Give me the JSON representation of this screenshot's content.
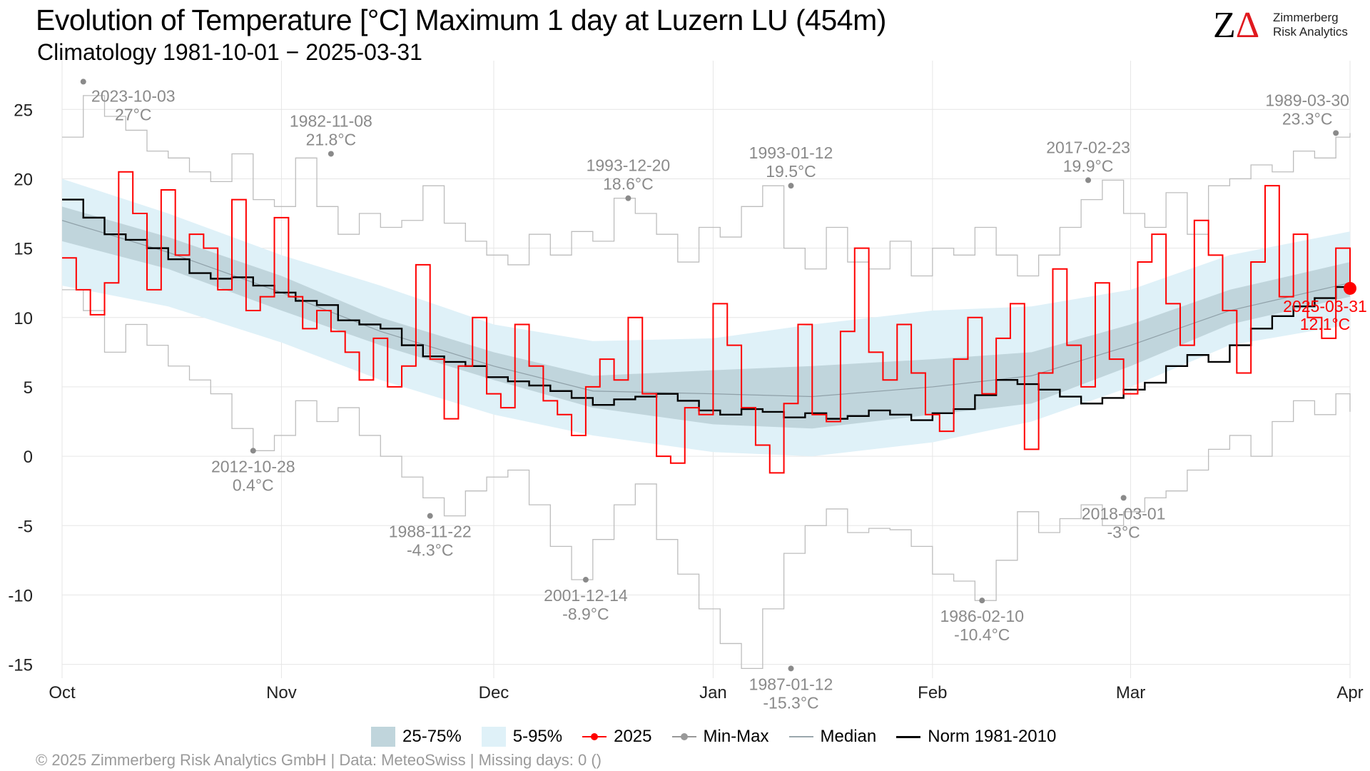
{
  "header": {
    "title": "Evolution of Temperature [°C] Maximum 1 day at Luzern  LU (454m)",
    "subtitle": "Climatology 1981-10-01 − 2025-03-31"
  },
  "logo": {
    "line1": "Zimmerberg",
    "line2": "Risk Analytics"
  },
  "footer": {
    "text": "©  2025 Zimmerberg Risk Analytics GmbH | Data: MeteoSwiss | Missing days: 0 ()"
  },
  "legend": [
    {
      "label": "25-75%",
      "kind": "band",
      "color": "#c0d5dc"
    },
    {
      "label": "5-95%",
      "kind": "band",
      "color": "#dff1f8"
    },
    {
      "label": "2025",
      "kind": "line-dot",
      "color": "#ff0000"
    },
    {
      "label": "Min-Max",
      "kind": "line-dot",
      "color": "#999999"
    },
    {
      "label": "Median",
      "kind": "line",
      "color": "#9aa7ad"
    },
    {
      "label": "Norm 1981-2010",
      "kind": "line",
      "color": "#000000"
    }
  ],
  "chart_data": {
    "type": "line",
    "x_axis": {
      "ticks": [
        "Oct",
        "Nov",
        "Dec",
        "Jan",
        "Feb",
        "Mar",
        "Apr"
      ],
      "start": "2024-10-01",
      "end": "2025-03-31"
    },
    "ylim": [
      -16,
      28
    ],
    "y_ticks": [
      25,
      20,
      15,
      10,
      5,
      0,
      -5,
      -10,
      -15
    ],
    "grid": true,
    "legend_position": "bottom",
    "colors": {
      "p25_75": "#c0d5dc",
      "p5_95": "#dff1f8",
      "current": "#ff0000",
      "minmax": "#bdbdbd",
      "median": "#8fa0a8",
      "norm": "#000000",
      "annot": "#8a8a8a"
    },
    "series": [
      {
        "name": "5-95%",
        "kind": "band",
        "x": [
          0,
          15,
          31,
          45,
          61,
          75,
          92,
          106,
          123,
          137,
          151,
          165,
          182
        ],
        "low": [
          12.3,
          10.8,
          8.2,
          5.5,
          3.0,
          1.5,
          0.3,
          0.0,
          1.0,
          2.5,
          5.0,
          8.0,
          9.5
        ],
        "high": [
          20.0,
          17.5,
          14.5,
          12.3,
          9.5,
          8.3,
          8.5,
          9.5,
          10.5,
          10.8,
          12.0,
          14.5,
          16.2
        ]
      },
      {
        "name": "25-75%",
        "kind": "band",
        "x": [
          0,
          15,
          31,
          45,
          61,
          75,
          92,
          106,
          123,
          137,
          151,
          165,
          182
        ],
        "low": [
          15.5,
          13.5,
          10.5,
          8.0,
          5.5,
          3.5,
          2.3,
          2.0,
          3.0,
          3.8,
          6.5,
          9.5,
          11.5
        ],
        "high": [
          18.0,
          15.8,
          13.0,
          10.0,
          7.5,
          5.8,
          6.2,
          6.5,
          7.0,
          7.5,
          9.5,
          12.0,
          14.0
        ]
      },
      {
        "name": "Median",
        "kind": "line",
        "x": [
          0,
          15,
          31,
          45,
          61,
          75,
          92,
          106,
          123,
          137,
          151,
          165,
          182
        ],
        "y": [
          17.0,
          14.7,
          11.8,
          9.0,
          6.5,
          4.7,
          4.5,
          4.3,
          5.0,
          5.8,
          8.0,
          10.5,
          12.5
        ]
      },
      {
        "name": "Norm 1981-2010",
        "kind": "step",
        "x": [
          0,
          3,
          6,
          9,
          12,
          15,
          18,
          21,
          24,
          27,
          30,
          33,
          36,
          39,
          42,
          45,
          48,
          51,
          54,
          57,
          60,
          63,
          66,
          69,
          72,
          75,
          78,
          81,
          84,
          87,
          90,
          93,
          96,
          99,
          102,
          105,
          108,
          111,
          114,
          117,
          120,
          123,
          126,
          129,
          132,
          135,
          138,
          141,
          144,
          147,
          150,
          153,
          156,
          159,
          162,
          165,
          168,
          171,
          174,
          177,
          180,
          182
        ],
        "y": [
          18.5,
          17.2,
          16.0,
          15.6,
          15.0,
          14.2,
          13.2,
          12.8,
          12.9,
          12.3,
          11.8,
          11.2,
          10.9,
          9.8,
          9.5,
          9.2,
          8.0,
          7.2,
          6.8,
          6.5,
          5.7,
          5.4,
          5.1,
          4.7,
          4.2,
          3.7,
          4.1,
          4.3,
          4.5,
          4.0,
          3.3,
          3.0,
          3.4,
          3.2,
          2.8,
          3.1,
          2.7,
          2.9,
          3.3,
          3.0,
          2.6,
          3.1,
          3.4,
          4.4,
          5.5,
          5.2,
          4.8,
          4.3,
          3.8,
          4.2,
          4.8,
          5.3,
          6.5,
          7.3,
          6.8,
          8.0,
          9.2,
          10.1,
          10.8,
          11.4,
          12.2,
          11.7
        ]
      },
      {
        "name": "Min-Max",
        "kind": "step",
        "role": "max",
        "x": [
          0,
          3,
          6,
          9,
          12,
          15,
          18,
          21,
          24,
          27,
          30,
          33,
          36,
          39,
          42,
          45,
          48,
          51,
          54,
          57,
          60,
          63,
          66,
          69,
          72,
          75,
          78,
          81,
          84,
          87,
          90,
          93,
          96,
          99,
          102,
          105,
          108,
          111,
          114,
          117,
          120,
          123,
          126,
          129,
          132,
          135,
          138,
          141,
          144,
          147,
          150,
          153,
          156,
          159,
          162,
          165,
          168,
          171,
          174,
          177,
          180,
          182
        ],
        "y": [
          23.0,
          26.0,
          24.5,
          23.5,
          22.0,
          21.5,
          20.5,
          19.8,
          21.8,
          18.5,
          18.0,
          21.5,
          18.0,
          16.0,
          17.5,
          16.5,
          17.0,
          19.5,
          16.8,
          15.5,
          14.5,
          13.8,
          16.0,
          14.5,
          16.2,
          15.5,
          18.6,
          17.5,
          16.0,
          14.0,
          16.5,
          15.8,
          18.0,
          19.5,
          15.0,
          13.5,
          16.5,
          14.0,
          13.5,
          15.5,
          13.0,
          15.0,
          14.5,
          16.5,
          14.5,
          13.0,
          14.5,
          16.5,
          18.5,
          19.9,
          17.5,
          16.5,
          19.0,
          16.0,
          19.5,
          20.0,
          21.0,
          20.5,
          22.0,
          21.5,
          23.0,
          23.3
        ]
      },
      {
        "name": "Min-Max",
        "kind": "step",
        "role": "min",
        "x": [
          0,
          3,
          6,
          9,
          12,
          15,
          18,
          21,
          24,
          27,
          30,
          33,
          36,
          39,
          42,
          45,
          48,
          51,
          54,
          57,
          60,
          63,
          66,
          69,
          72,
          75,
          78,
          81,
          84,
          87,
          90,
          93,
          96,
          99,
          102,
          105,
          108,
          111,
          114,
          117,
          120,
          123,
          126,
          129,
          132,
          135,
          138,
          141,
          144,
          147,
          150,
          153,
          156,
          159,
          162,
          165,
          168,
          171,
          174,
          177,
          180,
          182
        ],
        "y": [
          12.0,
          10.5,
          7.5,
          9.5,
          8.0,
          6.5,
          5.5,
          4.5,
          2.0,
          0.4,
          1.5,
          4.0,
          2.5,
          3.5,
          1.5,
          0.0,
          -1.5,
          -3.0,
          -4.3,
          -2.5,
          -1.5,
          -1.0,
          -3.5,
          -6.5,
          -8.9,
          -6.0,
          -3.5,
          -2.0,
          -6.0,
          -8.5,
          -11.0,
          -13.5,
          -15.3,
          -11.0,
          -7.0,
          -5.0,
          -3.8,
          -5.5,
          -5.2,
          -5.3,
          -6.5,
          -8.5,
          -9.0,
          -10.4,
          -7.5,
          -4.0,
          -5.5,
          -4.5,
          -3.5,
          -5.0,
          -4.0,
          -3.0,
          -2.5,
          -1.0,
          0.5,
          1.5,
          0.0,
          2.5,
          4.0,
          3.0,
          4.5,
          3.2
        ]
      },
      {
        "name": "2025",
        "kind": "step",
        "x": [
          0,
          2,
          4,
          6,
          8,
          10,
          12,
          14,
          16,
          18,
          20,
          22,
          24,
          26,
          28,
          30,
          32,
          34,
          36,
          38,
          40,
          42,
          44,
          46,
          48,
          50,
          52,
          54,
          56,
          58,
          60,
          62,
          64,
          66,
          68,
          70,
          72,
          74,
          76,
          78,
          80,
          82,
          84,
          86,
          88,
          90,
          92,
          94,
          96,
          98,
          100,
          102,
          104,
          106,
          108,
          110,
          112,
          114,
          116,
          118,
          120,
          122,
          124,
          126,
          128,
          130,
          132,
          134,
          136,
          138,
          140,
          142,
          144,
          146,
          148,
          150,
          152,
          154,
          156,
          158,
          160,
          162,
          164,
          166,
          168,
          170,
          172,
          174,
          176,
          178,
          180,
          182
        ],
        "y": [
          14.3,
          12.0,
          10.2,
          12.5,
          20.5,
          17.5,
          12.0,
          19.2,
          14.5,
          16.0,
          15.0,
          12.0,
          18.5,
          10.5,
          11.5,
          17.2,
          11.5,
          9.2,
          10.5,
          9.0,
          7.5,
          5.5,
          8.5,
          5.0,
          6.5,
          13.8,
          7.0,
          2.7,
          6.5,
          10.0,
          4.5,
          3.5,
          9.5,
          6.5,
          4.0,
          3.0,
          1.5,
          5.0,
          7.0,
          5.5,
          10.0,
          4.5,
          0.0,
          -0.5,
          3.5,
          3.0,
          11.0,
          8.0,
          3.5,
          0.8,
          -1.2,
          3.8,
          9.5,
          3.0,
          2.5,
          9.0,
          15.0,
          7.5,
          5.5,
          9.5,
          6.0,
          3.0,
          1.8,
          7.0,
          10.0,
          4.5,
          8.5,
          11.0,
          0.5,
          6.0,
          13.5,
          8.0,
          5.0,
          12.5,
          7.0,
          4.5,
          14.0,
          16.0,
          11.0,
          8.0,
          17.0,
          14.5,
          10.5,
          6.0,
          14.0,
          19.5,
          11.5,
          16.0,
          10.0,
          8.5,
          15.0,
          12.1
        ]
      }
    ],
    "annotations": [
      {
        "date": "2023-10-03",
        "value": "27°C",
        "x": 3,
        "y": 27.0,
        "pos": "right"
      },
      {
        "date": "1982-11-08",
        "value": "21.8°C",
        "x": 38,
        "y": 21.8,
        "pos": "above"
      },
      {
        "date": "1993-12-20",
        "value": "18.6°C",
        "x": 80,
        "y": 18.6,
        "pos": "above"
      },
      {
        "date": "1993-01-12",
        "value": "19.5°C",
        "x": 103,
        "y": 19.5,
        "pos": "above"
      },
      {
        "date": "2017-02-23",
        "value": "19.9°C",
        "x": 145,
        "y": 19.9,
        "pos": "above"
      },
      {
        "date": "1989-03-30",
        "value": "23.3°C",
        "x": 180,
        "y": 23.3,
        "pos": "above"
      },
      {
        "date": "2012-10-28",
        "value": "0.4°C",
        "x": 27,
        "y": 0.4,
        "pos": "below"
      },
      {
        "date": "1988-11-22",
        "value": "-4.3°C",
        "x": 52,
        "y": -4.3,
        "pos": "below"
      },
      {
        "date": "2001-12-14",
        "value": "-8.9°C",
        "x": 74,
        "y": -8.9,
        "pos": "below"
      },
      {
        "date": "1987-01-12",
        "value": "-15.3°C",
        "x": 103,
        "y": -15.3,
        "pos": "below"
      },
      {
        "date": "1986-02-10",
        "value": "-10.4°C",
        "x": 130,
        "y": -10.4,
        "pos": "below"
      },
      {
        "date": "2018-03-01",
        "value": "-3°C",
        "x": 150,
        "y": -3.0,
        "pos": "below"
      }
    ],
    "current_point": {
      "date": "2025-03-31",
      "value": "12.1°C",
      "x": 182,
      "y": 12.1
    }
  }
}
